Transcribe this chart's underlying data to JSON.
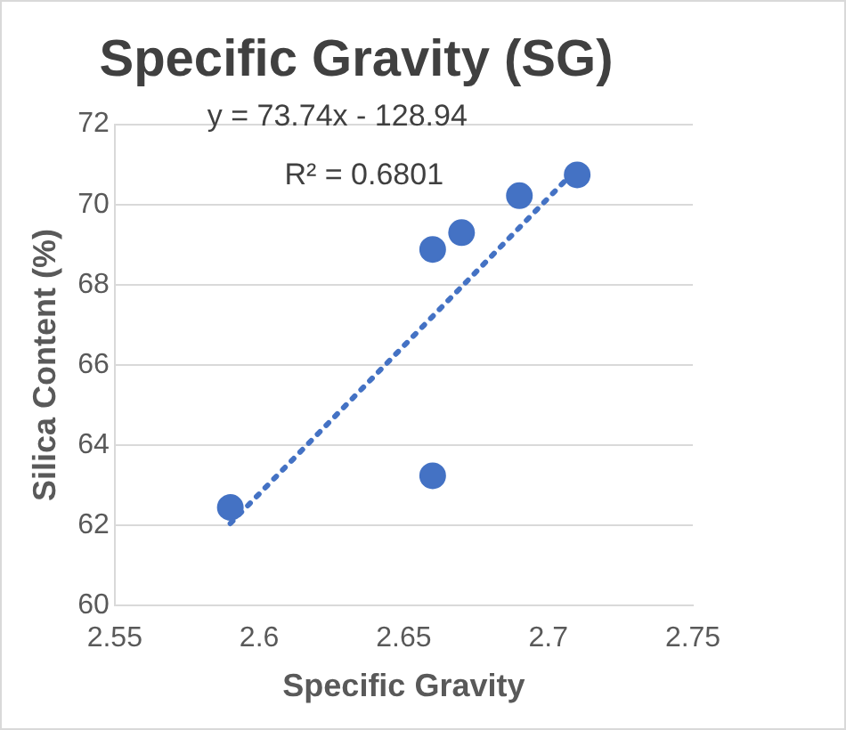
{
  "chart_data": {
    "type": "scatter",
    "title": "Specific Gravity (SG)",
    "xlabel": "Specific Gravity",
    "ylabel": "Silica Content (%)",
    "x": [
      2.59,
      2.66,
      2.66,
      2.67,
      2.69,
      2.71
    ],
    "series": [
      {
        "color": "#4472c4",
        "values": [
          62.45,
          63.24,
          68.88,
          69.3,
          70.22,
          70.74
        ],
        "marker": "circle"
      },
      {
        "type": "line",
        "color": "#4472c4",
        "x": [
          2.59,
          2.71
        ],
        "values": [
          62.05,
          70.9
        ],
        "line_style": "dotted",
        "marker": "none"
      }
    ],
    "annotations": [
      "y = 73.74x - 128.94",
      "R² = 0.6801"
    ],
    "xlim": [
      2.55,
      2.75
    ],
    "xticks": [
      2.55,
      2.6,
      2.65,
      2.7,
      2.75
    ],
    "ylim": [
      60,
      72
    ],
    "yticks": [
      60,
      62,
      64,
      66,
      68,
      70,
      72
    ],
    "grid": "y",
    "legend": false
  }
}
